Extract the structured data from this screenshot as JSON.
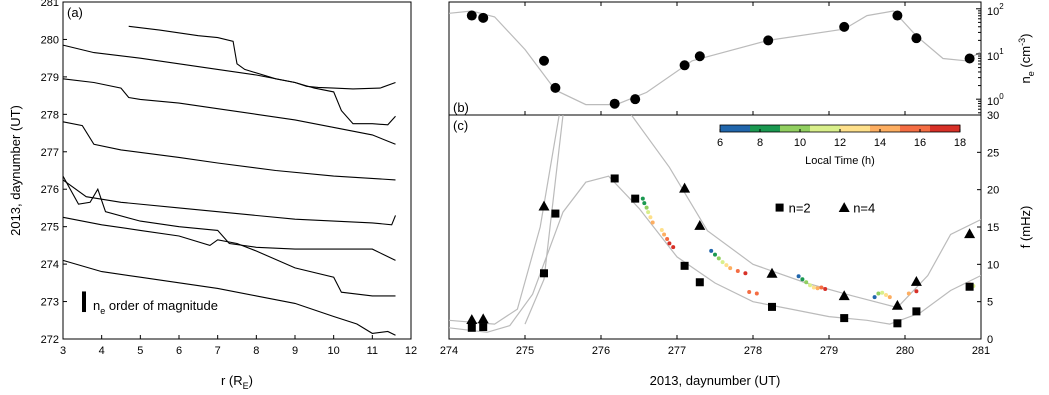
{
  "colors": {
    "model_curve": "#bbbbbb",
    "profile": "#000000"
  },
  "chart_data": [
    {
      "panel": "a",
      "panel_label": "(a)",
      "type": "line",
      "xlabel_main": "r (R",
      "xlabel_sub": "E",
      "xlabel_tail": ")",
      "ylabel": "2013, daynumber (UT)",
      "xlim": [
        3,
        12
      ],
      "ylim": [
        272,
        281
      ],
      "xticks": [
        3,
        4,
        5,
        6,
        7,
        8,
        9,
        10,
        11,
        12
      ],
      "yticks": [
        272,
        273,
        274,
        275,
        276,
        277,
        278,
        279,
        280,
        281
      ],
      "legend": {
        "main": "n",
        "sub": "e",
        "tail": " order of magnitude",
        "bar_length_days": 0.55
      },
      "series": [
        {
          "points": [
            [
              4.7,
              280.35
            ],
            [
              5.5,
              280.25
            ],
            [
              6.5,
              280.1
            ],
            [
              7.0,
              280.05
            ],
            [
              7.4,
              279.95
            ],
            [
              7.5,
              279.35
            ],
            [
              7.7,
              279.2
            ],
            [
              8.5,
              278.95
            ],
            [
              9.0,
              278.85
            ],
            [
              9.3,
              278.75
            ],
            [
              9.6,
              278.72
            ],
            [
              10.0,
              278.7
            ],
            [
              10.5,
              278.68
            ],
            [
              11.2,
              278.7
            ],
            [
              11.6,
              278.85
            ]
          ]
        },
        {
          "points": [
            [
              3.0,
              279.85
            ],
            [
              3.8,
              279.65
            ],
            [
              5.0,
              279.5
            ],
            [
              6.0,
              279.35
            ],
            [
              7.0,
              279.2
            ],
            [
              8.0,
              279.05
            ],
            [
              9.0,
              278.85
            ],
            [
              9.5,
              278.7
            ],
            [
              10.0,
              278.6
            ],
            [
              10.2,
              278.1
            ],
            [
              10.5,
              277.75
            ],
            [
              11.0,
              277.75
            ],
            [
              11.4,
              277.72
            ],
            [
              11.6,
              277.95
            ]
          ]
        },
        {
          "points": [
            [
              3.0,
              278.95
            ],
            [
              3.8,
              278.85
            ],
            [
              4.5,
              278.7
            ],
            [
              4.7,
              278.45
            ],
            [
              5.0,
              278.4
            ],
            [
              6.0,
              278.3
            ],
            [
              7.0,
              278.15
            ],
            [
              8.0,
              278.0
            ],
            [
              9.0,
              277.85
            ],
            [
              10.0,
              277.65
            ],
            [
              11.0,
              277.45
            ],
            [
              11.6,
              277.2
            ]
          ]
        },
        {
          "points": [
            [
              3.0,
              277.8
            ],
            [
              3.5,
              277.7
            ],
            [
              3.8,
              277.2
            ],
            [
              4.5,
              277.05
            ],
            [
              6.0,
              276.85
            ],
            [
              7.0,
              276.7
            ],
            [
              8.5,
              276.5
            ],
            [
              10.0,
              276.35
            ],
            [
              11.6,
              276.25
            ]
          ]
        },
        {
          "points": [
            [
              3.0,
              276.25
            ],
            [
              3.6,
              275.8
            ],
            [
              4.5,
              275.65
            ],
            [
              6.0,
              275.5
            ],
            [
              7.5,
              275.35
            ],
            [
              9.0,
              275.2
            ],
            [
              10.0,
              275.15
            ],
            [
              11.0,
              275.1
            ],
            [
              11.5,
              275.05
            ],
            [
              11.6,
              275.3
            ]
          ]
        },
        {
          "points": [
            [
              3.0,
              276.35
            ],
            [
              3.4,
              275.6
            ],
            [
              3.7,
              275.65
            ],
            [
              3.9,
              276.0
            ],
            [
              4.1,
              275.4
            ],
            [
              5.0,
              275.15
            ],
            [
              6.0,
              275.0
            ],
            [
              7.0,
              274.9
            ],
            [
              7.3,
              274.55
            ],
            [
              8.0,
              274.45
            ],
            [
              9.0,
              274.4
            ],
            [
              10.0,
              274.4
            ],
            [
              11.0,
              274.4
            ],
            [
              11.6,
              274.1
            ]
          ]
        },
        {
          "points": [
            [
              3.0,
              275.25
            ],
            [
              4.0,
              275.05
            ],
            [
              5.0,
              274.9
            ],
            [
              6.0,
              274.75
            ],
            [
              6.8,
              274.5
            ],
            [
              7.0,
              274.65
            ],
            [
              7.5,
              274.55
            ],
            [
              8.0,
              274.35
            ],
            [
              9.0,
              273.9
            ],
            [
              10.0,
              273.65
            ],
            [
              10.2,
              273.25
            ],
            [
              11.0,
              273.15
            ],
            [
              11.6,
              273.15
            ]
          ]
        },
        {
          "points": [
            [
              3.0,
              274.1
            ],
            [
              4.0,
              273.8
            ],
            [
              5.0,
              273.65
            ],
            [
              6.0,
              273.5
            ],
            [
              7.0,
              273.35
            ],
            [
              8.0,
              273.15
            ],
            [
              9.0,
              272.95
            ],
            [
              10.0,
              272.6
            ],
            [
              10.6,
              272.4
            ],
            [
              11.0,
              272.15
            ],
            [
              11.4,
              272.2
            ],
            [
              11.6,
              272.1
            ]
          ]
        }
      ]
    },
    {
      "panel": "b",
      "panel_label": "(b)",
      "type": "scatter",
      "ylabel_main": "n",
      "ylabel_sub": "e",
      "ylabel_tail": " (cm",
      "ylabel_sup": "-3",
      "ylabel_close": ")",
      "xlim": [
        274,
        281
      ],
      "ylim_log10": [
        -0.35,
        2.15
      ],
      "yscale": "log",
      "right_ticks": [
        {
          "base": "10",
          "exp": "0",
          "value": 0
        },
        {
          "base": "10",
          "exp": "1",
          "value": 1
        },
        {
          "base": "10",
          "exp": "2",
          "value": 2
        }
      ],
      "points": [
        [
          274.3,
          1.85
        ],
        [
          274.45,
          1.8
        ],
        [
          275.25,
          0.85
        ],
        [
          275.4,
          0.25
        ],
        [
          276.18,
          -0.1
        ],
        [
          276.45,
          0.0
        ],
        [
          277.1,
          0.75
        ],
        [
          277.3,
          0.95
        ],
        [
          278.2,
          1.3
        ],
        [
          279.2,
          1.6
        ],
        [
          279.9,
          1.85
        ],
        [
          280.15,
          1.35
        ],
        [
          280.85,
          0.9
        ]
      ],
      "model": [
        [
          274.0,
          1.9
        ],
        [
          274.3,
          1.95
        ],
        [
          274.6,
          1.82
        ],
        [
          275.0,
          1.1
        ],
        [
          275.4,
          0.2
        ],
        [
          275.8,
          -0.12
        ],
        [
          276.2,
          -0.12
        ],
        [
          276.6,
          0.15
        ],
        [
          277.2,
          0.85
        ],
        [
          278.2,
          1.3
        ],
        [
          279.2,
          1.55
        ],
        [
          279.5,
          1.85
        ],
        [
          279.85,
          1.95
        ],
        [
          280.15,
          1.4
        ],
        [
          280.5,
          0.9
        ],
        [
          280.8,
          0.85
        ],
        [
          281.0,
          1.05
        ]
      ]
    },
    {
      "panel": "c",
      "panel_label": "(c)",
      "type": "scatter",
      "xlabel": "2013, daynumber (UT)",
      "ylabel": "f (mHz)",
      "xlim": [
        274,
        281
      ],
      "ylim": [
        0,
        30
      ],
      "xticks": [
        274,
        275,
        276,
        277,
        278,
        279,
        280,
        281
      ],
      "yticks": [
        0,
        5,
        10,
        15,
        20,
        25,
        30
      ],
      "legend": {
        "n2": "n=2",
        "n4": "n=4"
      },
      "colorbar": {
        "label": "Local Time (h)",
        "ticks": [
          6,
          8,
          10,
          12,
          14,
          16,
          18
        ],
        "colors": [
          "#2166ac",
          "#1a9850",
          "#91cf60",
          "#d9ef8b",
          "#fee08b",
          "#fdae61",
          "#f46d43",
          "#d73027"
        ]
      },
      "n2": {
        "points": [
          [
            274.3,
            1.5
          ],
          [
            274.45,
            1.6
          ],
          [
            275.25,
            8.8
          ],
          [
            275.4,
            16.8
          ],
          [
            276.18,
            21.5
          ],
          [
            276.45,
            18.8
          ],
          [
            277.1,
            9.8
          ],
          [
            277.3,
            7.6
          ],
          [
            278.25,
            4.3
          ],
          [
            279.2,
            2.8
          ],
          [
            279.9,
            2.1
          ],
          [
            280.15,
            3.7
          ],
          [
            280.85,
            7.0
          ]
        ],
        "model": [
          [
            274.0,
            1.5
          ],
          [
            274.5,
            0.9
          ],
          [
            274.8,
            1.8
          ],
          [
            275.1,
            6.0
          ],
          [
            275.5,
            17.0
          ],
          [
            275.8,
            21.0
          ],
          [
            276.1,
            21.8
          ],
          [
            276.5,
            17.5
          ],
          [
            277.0,
            11.0
          ],
          [
            277.5,
            7.5
          ],
          [
            278.0,
            5.0
          ],
          [
            278.5,
            4.0
          ],
          [
            279.0,
            3.0
          ],
          [
            279.5,
            2.5
          ],
          [
            279.8,
            2.0
          ],
          [
            280.2,
            3.5
          ],
          [
            280.6,
            6.5
          ],
          [
            281.0,
            8.5
          ]
        ],
        "model_steep": [
          [
            275.0,
            2.0
          ],
          [
            275.25,
            8.0
          ],
          [
            275.5,
            30.0
          ]
        ]
      },
      "n4": {
        "points": [
          [
            274.3,
            2.6
          ],
          [
            274.45,
            2.7
          ],
          [
            275.25,
            17.8
          ],
          [
            277.1,
            20.2
          ],
          [
            277.3,
            15.2
          ],
          [
            278.25,
            8.8
          ],
          [
            279.2,
            5.8
          ],
          [
            279.9,
            4.5
          ],
          [
            280.15,
            7.7
          ],
          [
            280.85,
            14.1
          ]
        ],
        "model": [
          [
            274.0,
            2.5
          ],
          [
            274.6,
            2.0
          ],
          [
            274.9,
            4.0
          ],
          [
            275.2,
            15.0
          ],
          [
            275.45,
            30.0
          ]
        ],
        "model_upper": [
          [
            276.4,
            30.0
          ],
          [
            276.9,
            23.0
          ],
          [
            277.4,
            14.5
          ],
          [
            278.0,
            10.0
          ],
          [
            278.7,
            7.5
          ],
          [
            279.3,
            5.8
          ],
          [
            279.9,
            4.2
          ],
          [
            280.3,
            8.5
          ],
          [
            280.6,
            14.0
          ],
          [
            281.0,
            16.0
          ]
        ]
      },
      "observations": [
        {
          "day": 276.55,
          "f": 18.8,
          "lt": 7.5
        },
        {
          "day": 276.57,
          "f": 18.2,
          "lt": 8.5
        },
        {
          "day": 276.6,
          "f": 17.6,
          "lt": 9.5
        },
        {
          "day": 276.62,
          "f": 17.0,
          "lt": 11.0
        },
        {
          "day": 276.65,
          "f": 16.3,
          "lt": 12.5
        },
        {
          "day": 276.68,
          "f": 15.6,
          "lt": 14.0
        },
        {
          "day": 276.8,
          "f": 14.6,
          "lt": 13.0
        },
        {
          "day": 276.83,
          "f": 14.0,
          "lt": 14.5
        },
        {
          "day": 276.87,
          "f": 13.4,
          "lt": 15.5
        },
        {
          "day": 276.9,
          "f": 12.8,
          "lt": 16.5
        },
        {
          "day": 276.95,
          "f": 12.3,
          "lt": 17.5
        },
        {
          "day": 277.45,
          "f": 11.8,
          "lt": 6.5
        },
        {
          "day": 277.5,
          "f": 11.3,
          "lt": 8.0
        },
        {
          "day": 277.55,
          "f": 10.8,
          "lt": 9.5
        },
        {
          "day": 277.6,
          "f": 10.3,
          "lt": 11.0
        },
        {
          "day": 277.65,
          "f": 9.9,
          "lt": 12.5
        },
        {
          "day": 277.7,
          "f": 9.5,
          "lt": 14.0
        },
        {
          "day": 277.8,
          "f": 9.1,
          "lt": 15.5
        },
        {
          "day": 277.9,
          "f": 8.8,
          "lt": 17.0
        },
        {
          "day": 277.95,
          "f": 6.3,
          "lt": 15.0
        },
        {
          "day": 278.05,
          "f": 6.1,
          "lt": 16.0
        },
        {
          "day": 278.6,
          "f": 8.4,
          "lt": 6.5
        },
        {
          "day": 278.65,
          "f": 8.0,
          "lt": 8.0
        },
        {
          "day": 278.7,
          "f": 7.6,
          "lt": 9.5
        },
        {
          "day": 278.75,
          "f": 7.2,
          "lt": 11.0
        },
        {
          "day": 278.8,
          "f": 6.9,
          "lt": 12.5
        },
        {
          "day": 278.85,
          "f": 6.8,
          "lt": 14.0
        },
        {
          "day": 278.9,
          "f": 6.9,
          "lt": 15.5
        },
        {
          "day": 278.95,
          "f": 6.7,
          "lt": 17.0
        },
        {
          "day": 279.6,
          "f": 5.6,
          "lt": 6.5
        },
        {
          "day": 279.65,
          "f": 6.1,
          "lt": 9.0
        },
        {
          "day": 279.7,
          "f": 6.2,
          "lt": 11.0
        },
        {
          "day": 279.75,
          "f": 5.9,
          "lt": 12.5
        },
        {
          "day": 279.8,
          "f": 5.6,
          "lt": 14.0
        },
        {
          "day": 280.05,
          "f": 6.1,
          "lt": 14.0
        },
        {
          "day": 280.15,
          "f": 6.4,
          "lt": 16.5
        },
        {
          "day": 280.85,
          "f": 7.3,
          "lt": 15.0
        },
        {
          "day": 280.9,
          "f": 7.1,
          "lt": 11.0
        }
      ]
    }
  ]
}
